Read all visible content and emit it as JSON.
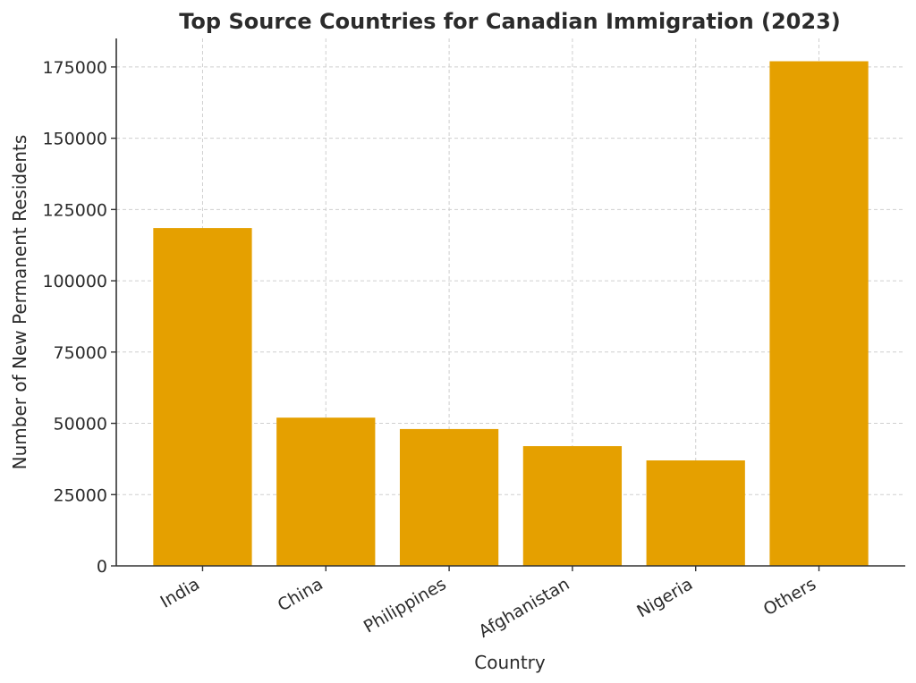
{
  "chart_data": {
    "type": "bar",
    "title": "Top Source Countries for Canadian Immigration (2023)",
    "xlabel": "Country",
    "ylabel": "Number of New Permanent Residents",
    "categories": [
      "India",
      "China",
      "Philippines",
      "Afghanistan",
      "Nigeria",
      "Others"
    ],
    "values": [
      118500,
      52000,
      48000,
      42000,
      37000,
      177000
    ],
    "ylim": [
      0,
      185000
    ],
    "yticks": [
      0,
      25000,
      50000,
      75000,
      100000,
      125000,
      150000,
      175000
    ],
    "ytick_labels": [
      "0",
      "25000",
      "50000",
      "75000",
      "100000",
      "125000",
      "150000",
      "175000"
    ],
    "grid": true,
    "bar_color": "#E5A000"
  }
}
